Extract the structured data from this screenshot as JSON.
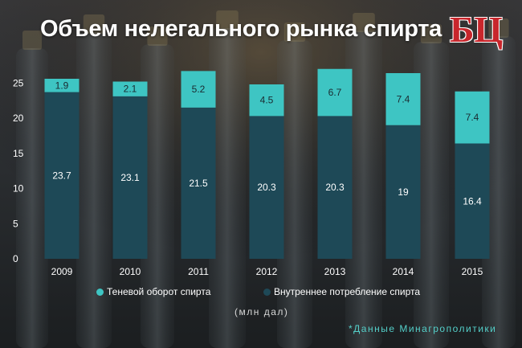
{
  "title": "Объем нелегального рынка спирта",
  "logo_text": "БЦ",
  "unit_label": "(млн дал)",
  "source_note": "*Данные Минагрополитики",
  "colors": {
    "shadow_turnover": "#3ec5c3",
    "domestic_consumption": "#1e4957",
    "text": "#ffffff",
    "logo": "#c8262c"
  },
  "chart_data": {
    "type": "bar",
    "stacked": true,
    "categories": [
      "2009",
      "2010",
      "2011",
      "2012",
      "2013",
      "2014",
      "2015"
    ],
    "series": [
      {
        "name": "Внутреннее потребление спирта",
        "values": [
          23.7,
          23.1,
          21.5,
          20.3,
          20.3,
          19,
          16.4
        ],
        "labels": [
          "23.7",
          "23.1",
          "21.5",
          "20.3",
          "20.3",
          "19",
          "16.4"
        ]
      },
      {
        "name": "Теневой оборот спирта",
        "values": [
          1.9,
          2.1,
          5.2,
          4.5,
          6.7,
          7.4,
          7.4
        ],
        "labels": [
          "1.9",
          "2.1",
          "5.2",
          "4.5",
          "6.7",
          "7.4",
          "7.4"
        ]
      }
    ],
    "yticks": [
      "0",
      "5",
      "10",
      "15",
      "20",
      "25"
    ],
    "ylim": [
      0,
      27
    ],
    "grid": false,
    "legend": "bottom"
  }
}
